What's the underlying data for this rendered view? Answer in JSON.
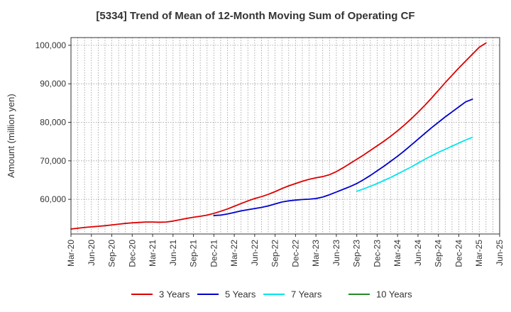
{
  "chart_data": {
    "type": "line",
    "title": "[5334]  Trend of Mean of 12-Month Moving Sum of Operating CF",
    "xlabel": "",
    "ylabel": "Amount (million yen)",
    "ylim": [
      51000,
      102000
    ],
    "yticks": [
      60000,
      70000,
      80000,
      90000,
      100000
    ],
    "ytick_labels": [
      "60,000",
      "70,000",
      "80,000",
      "90,000",
      "100,000"
    ],
    "x_tick_labels": [
      "Mar-20",
      "Jun-20",
      "Sep-20",
      "Dec-20",
      "Mar-21",
      "Jun-21",
      "Sep-21",
      "Dec-21",
      "Mar-22",
      "Jun-22",
      "Sep-22",
      "Dec-22",
      "Mar-23",
      "Jun-23",
      "Sep-23",
      "Dec-23",
      "Mar-24",
      "Jun-24",
      "Sep-24",
      "Dec-24",
      "Mar-25",
      "Jun-25"
    ],
    "grid": true,
    "legend_position": "bottom",
    "series": [
      {
        "name": "3 Years",
        "color": "#dd0000",
        "start_index": 0,
        "values": [
          52300,
          52500,
          52700,
          52850,
          53000,
          53150,
          53350,
          53550,
          53750,
          53900,
          54000,
          54100,
          54100,
          54050,
          54100,
          54350,
          54700,
          55050,
          55350,
          55600,
          55900,
          56350,
          56900,
          57500,
          58200,
          58900,
          59600,
          60200,
          60700,
          61300,
          62000,
          62800,
          63500,
          64100,
          64700,
          65200,
          65600,
          65900,
          66400,
          67200,
          68200,
          69300,
          70400,
          71500,
          72700,
          73900,
          75100,
          76400,
          77800,
          79300,
          80900,
          82600,
          84400,
          86300,
          88300,
          90300,
          92200,
          94100,
          95900,
          97700,
          99500,
          100600
        ]
      },
      {
        "name": "5 Years",
        "color": "#0000cc",
        "start_index": 21,
        "values": [
          55800,
          55900,
          56200,
          56600,
          57000,
          57300,
          57600,
          57900,
          58300,
          58800,
          59300,
          59600,
          59800,
          59950,
          60050,
          60200,
          60600,
          61200,
          61900,
          62600,
          63300,
          64100,
          65100,
          66200,
          67400,
          68600,
          69900,
          71200,
          72600,
          74100,
          75600,
          77100,
          78600,
          80000,
          81400,
          82700,
          84000,
          85300,
          86000
        ]
      },
      {
        "name": "7 Years",
        "color": "#00e5ee",
        "start_index": 42,
        "values": [
          62100,
          62700,
          63400,
          64100,
          64900,
          65700,
          66600,
          67500,
          68400,
          69400,
          70400,
          71300,
          72200,
          73000,
          73800,
          74600,
          75400,
          76100
        ]
      },
      {
        "name": "10 Years",
        "color": "#228b22",
        "start_index": 0,
        "values": []
      }
    ]
  }
}
